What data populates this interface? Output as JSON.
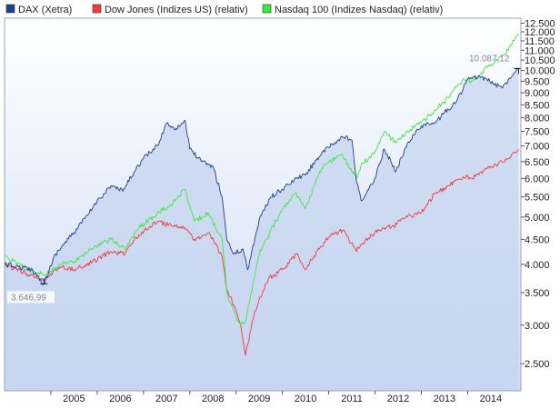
{
  "chart_data": {
    "type": "line",
    "legend": [
      {
        "label": "DAX (Xetra)",
        "color": "#1f3f8f"
      },
      {
        "label": "Dow Jones (Indizes US) (relativ)",
        "color": "#ee3b3b"
      },
      {
        "label": "Nasdaq 100 (Indizes Nasdaq) (relativ)",
        "color": "#3ee83e"
      }
    ],
    "legend_position": "top-left",
    "y_scale": "log",
    "y_ticks": [
      {
        "value": 2500,
        "label": "2.500"
      },
      {
        "value": 3000,
        "label": "3.000"
      },
      {
        "value": 3500,
        "label": "3.500"
      },
      {
        "value": 4000,
        "label": "4.000"
      },
      {
        "value": 4500,
        "label": "4.500"
      },
      {
        "value": 5000,
        "label": "5.000"
      },
      {
        "value": 5500,
        "label": "5.500"
      },
      {
        "value": 6000,
        "label": "6.000"
      },
      {
        "value": 6500,
        "label": "6.500"
      },
      {
        "value": 7000,
        "label": "7.000"
      },
      {
        "value": 7500,
        "label": "7.500"
      },
      {
        "value": 8000,
        "label": "8.000"
      },
      {
        "value": 8500,
        "label": "8.500"
      },
      {
        "value": 9000,
        "label": "9.000"
      },
      {
        "value": 9500,
        "label": "9.500"
      },
      {
        "value": 10000,
        "label": "10.000"
      },
      {
        "value": 10500,
        "label": "10.500"
      },
      {
        "value": 11000,
        "label": "11.000"
      },
      {
        "value": 11500,
        "label": "11.500"
      },
      {
        "value": 12000,
        "label": "12.000"
      },
      {
        "value": 12500,
        "label": "12.500"
      }
    ],
    "ylim": [
      2200,
      12800
    ],
    "xlim": [
      2004.0,
      2015.15
    ],
    "x_ticks": [
      {
        "value": 2005,
        "label": "2005"
      },
      {
        "value": 2006,
        "label": "2006"
      },
      {
        "value": 2007,
        "label": "2007"
      },
      {
        "value": 2008,
        "label": "2008"
      },
      {
        "value": 2009,
        "label": "2009"
      },
      {
        "value": 2010,
        "label": "2010"
      },
      {
        "value": 2011,
        "label": "2011"
      },
      {
        "value": 2012,
        "label": "2012"
      },
      {
        "value": 2013,
        "label": "2013"
      },
      {
        "value": 2014,
        "label": "2014"
      }
    ],
    "series": [
      {
        "name": "DAX (Xetra)",
        "color": "#1f3f8f",
        "x": [
          2004.0,
          2004.3,
          2004.6,
          2004.85,
          2005.1,
          2005.5,
          2005.8,
          2006.0,
          2006.3,
          2006.55,
          2006.8,
          2007.0,
          2007.3,
          2007.5,
          2007.7,
          2007.9,
          2008.0,
          2008.25,
          2008.5,
          2008.7,
          2008.8,
          2008.95,
          2009.15,
          2009.25,
          2009.5,
          2009.75,
          2010.0,
          2010.3,
          2010.5,
          2010.75,
          2011.0,
          2011.3,
          2011.5,
          2011.6,
          2011.7,
          2011.95,
          2012.2,
          2012.45,
          2012.7,
          2013.0,
          2013.3,
          2013.5,
          2013.75,
          2014.0,
          2014.3,
          2014.55,
          2014.75,
          2014.9,
          2015.05,
          2015.1
        ],
        "y": [
          4000,
          3950,
          3900,
          3647,
          4200,
          4650,
          5050,
          5400,
          5800,
          5650,
          6200,
          6600,
          7000,
          7800,
          7600,
          7900,
          6900,
          6500,
          6350,
          5500,
          4500,
          4200,
          4300,
          3900,
          4950,
          5500,
          5700,
          6000,
          6100,
          6600,
          6950,
          7300,
          7200,
          5900,
          5400,
          5850,
          6900,
          6200,
          7100,
          7700,
          7800,
          8200,
          8600,
          9600,
          9700,
          9400,
          9200,
          9650,
          10000,
          10087
        ]
      },
      {
        "name": "Dow Jones (Indizes US) (relativ)",
        "color": "#ee3b3b",
        "x": [
          2004.0,
          2004.4,
          2004.85,
          2005.2,
          2005.5,
          2005.9,
          2006.3,
          2006.6,
          2006.9,
          2007.3,
          2007.6,
          2007.9,
          2008.1,
          2008.4,
          2008.7,
          2008.8,
          2008.95,
          2009.1,
          2009.2,
          2009.4,
          2009.7,
          2010.0,
          2010.3,
          2010.5,
          2010.8,
          2011.0,
          2011.3,
          2011.6,
          2011.7,
          2012.0,
          2012.4,
          2012.7,
          2013.0,
          2013.3,
          2013.6,
          2013.9,
          2014.1,
          2014.5,
          2014.8,
          2015.0,
          2015.1
        ],
        "y": [
          4000,
          3850,
          3700,
          3950,
          3900,
          4050,
          4250,
          4200,
          4600,
          4900,
          4800,
          4750,
          4500,
          4650,
          4150,
          3550,
          3300,
          3000,
          2600,
          3200,
          3750,
          3900,
          4200,
          3900,
          4300,
          4550,
          4700,
          4250,
          4400,
          4650,
          4800,
          5000,
          5100,
          5600,
          5800,
          6050,
          6000,
          6350,
          6500,
          6800,
          6900
        ]
      },
      {
        "name": "Nasdaq 100 (Indizes Nasdaq) (relativ)",
        "color": "#3ee83e",
        "x": [
          2004.0,
          2004.4,
          2004.85,
          2005.2,
          2005.5,
          2005.9,
          2006.3,
          2006.6,
          2006.9,
          2007.3,
          2007.6,
          2007.9,
          2008.1,
          2008.4,
          2008.7,
          2008.8,
          2008.95,
          2009.1,
          2009.2,
          2009.5,
          2009.75,
          2010.0,
          2010.3,
          2010.5,
          2010.8,
          2011.0,
          2011.3,
          2011.6,
          2011.7,
          2012.0,
          2012.2,
          2012.45,
          2012.7,
          2013.0,
          2013.3,
          2013.6,
          2013.9,
          2014.1,
          2014.3,
          2014.5,
          2014.8,
          2015.0,
          2015.1
        ],
        "y": [
          4150,
          3950,
          3800,
          4000,
          4050,
          4300,
          4500,
          4300,
          4750,
          5100,
          5300,
          5700,
          4900,
          5100,
          4500,
          3500,
          3200,
          3000,
          3050,
          4200,
          4700,
          5200,
          5600,
          5200,
          6200,
          6500,
          6700,
          6000,
          6400,
          6800,
          7500,
          7100,
          7500,
          7800,
          8300,
          8800,
          9600,
          9500,
          9900,
          10300,
          10800,
          11500,
          11900
        ]
      }
    ],
    "annotations": [
      {
        "text": "3.646,99",
        "x": 2004.85,
        "y": 3647,
        "kind": "low"
      },
      {
        "text": "10.087,12",
        "x": 2015.1,
        "y": 10087,
        "kind": "last"
      }
    ],
    "grid": false
  }
}
